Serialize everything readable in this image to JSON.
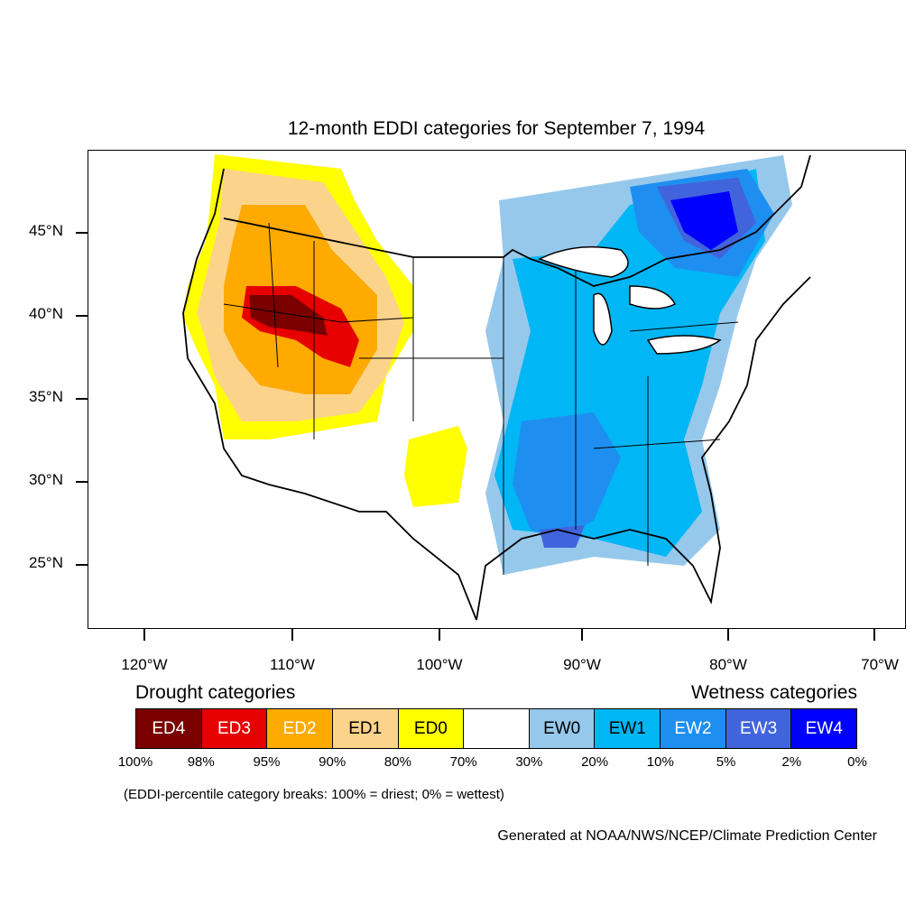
{
  "title": "12-month EDDI categories for September 7, 1994",
  "map": {
    "type": "choropleth-map",
    "region": "Contiguous United States",
    "lat_labels": [
      "45°N",
      "40°N",
      "35°N",
      "30°N",
      "25°N"
    ],
    "lon_labels": [
      "120°W",
      "110°W",
      "100°W",
      "90°W",
      "80°W",
      "70°W"
    ],
    "colors": {
      "ED4": "#7a0000",
      "ED3": "#e60000",
      "ED2": "#ffaa00",
      "ED1": "#fcd38a",
      "ED0": "#ffff00",
      "neutral": "#ffffff",
      "EW0": "#96c8ec",
      "EW1": "#00b6f5",
      "EW2": "#1e8ff0",
      "EW3": "#4164dc",
      "EW4": "#0000ff"
    }
  },
  "legend": {
    "drought_heading": "Drought categories",
    "wetness_heading": "Wetness categories",
    "categories": [
      {
        "label": "ED4",
        "color": "#7a0000",
        "text_color": "#ffffff"
      },
      {
        "label": "ED3",
        "color": "#e60000",
        "text_color": "#ffffff"
      },
      {
        "label": "ED2",
        "color": "#ffaa00",
        "text_color": "#ffffff"
      },
      {
        "label": "ED1",
        "color": "#fcd38a",
        "text_color": "#000000"
      },
      {
        "label": "ED0",
        "color": "#ffff00",
        "text_color": "#000000"
      },
      {
        "label": "",
        "color": "#ffffff",
        "text_color": "#000000"
      },
      {
        "label": "EW0",
        "color": "#96c8ec",
        "text_color": "#000000"
      },
      {
        "label": "EW1",
        "color": "#00b6f5",
        "text_color": "#000000"
      },
      {
        "label": "EW2",
        "color": "#1e8ff0",
        "text_color": "#ffffff"
      },
      {
        "label": "EW3",
        "color": "#4164dc",
        "text_color": "#ffffff"
      },
      {
        "label": "EW4",
        "color": "#0000ff",
        "text_color": "#ffffff"
      }
    ],
    "percentiles": [
      "100%",
      "98%",
      "95%",
      "90%",
      "80%",
      "70%",
      "30%",
      "20%",
      "10%",
      "5%",
      "2%",
      "0%"
    ]
  },
  "note": "(EDDI-percentile category breaks: 100% = driest; 0% = wettest)",
  "credit": "Generated at NOAA/NWS/NCEP/Climate Prediction Center"
}
